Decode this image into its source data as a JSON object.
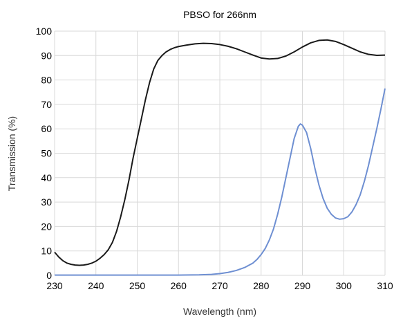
{
  "chart_data": {
    "type": "line",
    "title": "PBSO for 266nm",
    "xlabel": "Wavelength (nm)",
    "ylabel": "Transmission (%)",
    "xlim": [
      230,
      310
    ],
    "ylim": [
      0,
      100
    ],
    "xticks": [
      230,
      240,
      250,
      260,
      270,
      280,
      290,
      300,
      310
    ],
    "yticks": [
      0,
      10,
      20,
      30,
      40,
      50,
      60,
      70,
      80,
      90,
      100
    ],
    "grid": true,
    "legend": "none",
    "series": [
      {
        "color": "#1a1a1a",
        "points": [
          [
            230,
            9.5
          ],
          [
            231,
            7.5
          ],
          [
            232,
            6
          ],
          [
            233,
            5
          ],
          [
            234,
            4.5
          ],
          [
            235,
            4.2
          ],
          [
            236,
            4.1
          ],
          [
            237,
            4.2
          ],
          [
            238,
            4.5
          ],
          [
            239,
            5
          ],
          [
            240,
            5.8
          ],
          [
            241,
            7
          ],
          [
            242,
            8.5
          ],
          [
            243,
            10.5
          ],
          [
            244,
            13.5
          ],
          [
            245,
            18
          ],
          [
            246,
            24
          ],
          [
            247,
            31
          ],
          [
            248,
            39
          ],
          [
            249,
            48
          ],
          [
            250,
            56
          ],
          [
            251,
            64
          ],
          [
            252,
            72
          ],
          [
            253,
            79
          ],
          [
            254,
            84.5
          ],
          [
            255,
            88
          ],
          [
            256,
            90
          ],
          [
            257,
            91.5
          ],
          [
            258,
            92.5
          ],
          [
            259,
            93.2
          ],
          [
            260,
            93.7
          ],
          [
            262,
            94.3
          ],
          [
            264,
            94.8
          ],
          [
            266,
            95
          ],
          [
            268,
            94.9
          ],
          [
            270,
            94.5
          ],
          [
            272,
            93.8
          ],
          [
            274,
            92.8
          ],
          [
            276,
            91.5
          ],
          [
            278,
            90.2
          ],
          [
            280,
            89
          ],
          [
            282,
            88.6
          ],
          [
            284,
            88.8
          ],
          [
            286,
            89.8
          ],
          [
            288,
            91.5
          ],
          [
            290,
            93.5
          ],
          [
            292,
            95.2
          ],
          [
            294,
            96.2
          ],
          [
            296,
            96.4
          ],
          [
            298,
            95.8
          ],
          [
            300,
            94.5
          ],
          [
            302,
            93
          ],
          [
            304,
            91.5
          ],
          [
            306,
            90.5
          ],
          [
            308,
            90.1
          ],
          [
            310,
            90.2
          ]
        ]
      },
      {
        "color": "#6e8fd2",
        "points": [
          [
            230,
            0.1
          ],
          [
            240,
            0.1
          ],
          [
            250,
            0.1
          ],
          [
            260,
            0.1
          ],
          [
            265,
            0.2
          ],
          [
            268,
            0.4
          ],
          [
            270,
            0.7
          ],
          [
            272,
            1.2
          ],
          [
            274,
            2
          ],
          [
            276,
            3.2
          ],
          [
            278,
            5
          ],
          [
            279,
            6.5
          ],
          [
            280,
            8.5
          ],
          [
            281,
            11
          ],
          [
            282,
            14.5
          ],
          [
            283,
            19
          ],
          [
            284,
            25
          ],
          [
            285,
            32
          ],
          [
            286,
            40
          ],
          [
            287,
            48
          ],
          [
            288,
            56
          ],
          [
            289,
            61
          ],
          [
            289.5,
            62
          ],
          [
            290,
            61.5
          ],
          [
            291,
            58.5
          ],
          [
            292,
            52
          ],
          [
            293,
            44
          ],
          [
            294,
            37
          ],
          [
            295,
            31.5
          ],
          [
            296,
            27.5
          ],
          [
            297,
            25
          ],
          [
            298,
            23.5
          ],
          [
            299,
            23
          ],
          [
            300,
            23.2
          ],
          [
            301,
            24
          ],
          [
            302,
            26
          ],
          [
            303,
            29
          ],
          [
            304,
            33
          ],
          [
            305,
            38.5
          ],
          [
            306,
            45
          ],
          [
            307,
            52.5
          ],
          [
            308,
            60
          ],
          [
            309,
            68
          ],
          [
            310,
            76.5
          ]
        ]
      }
    ]
  }
}
